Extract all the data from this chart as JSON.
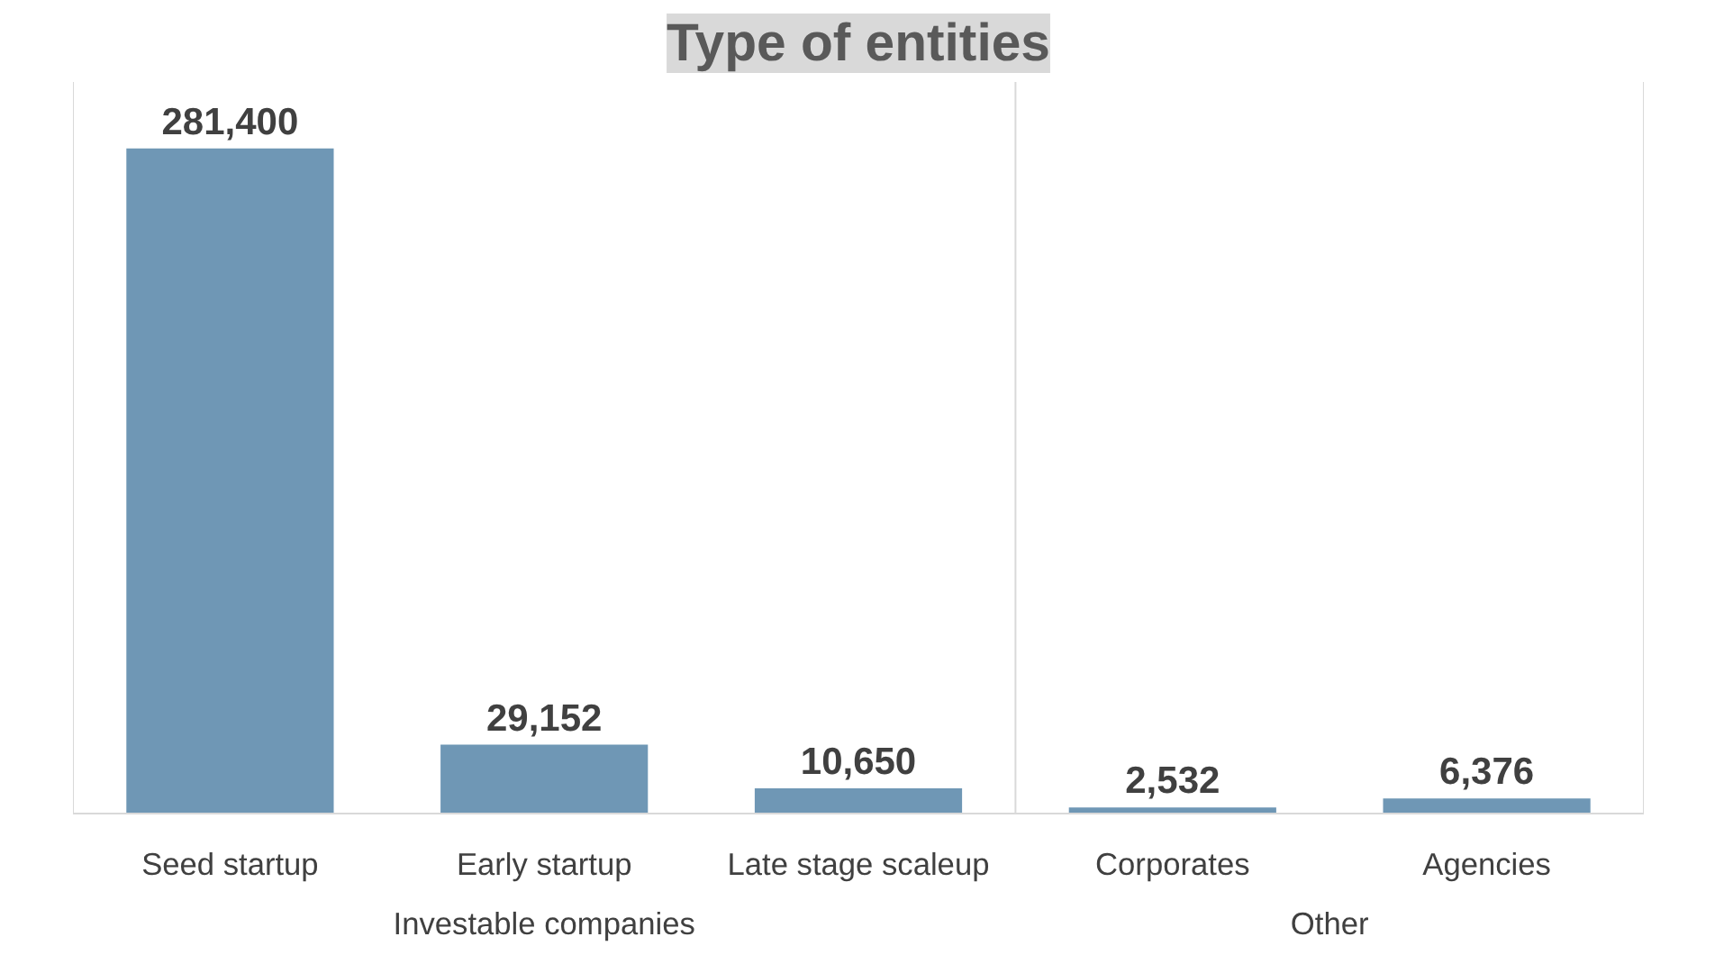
{
  "chart_data": {
    "type": "bar",
    "title": "Type of entities",
    "categories": [
      "Seed startup",
      "Early startup",
      "Late stage scaleup",
      "Corporates",
      "Agencies"
    ],
    "values": [
      281400,
      29152,
      10650,
      2532,
      6376
    ],
    "color": "#6f97b5",
    "value_labels": [
      "281,400",
      "29,152",
      "10,650",
      "2,532",
      "6,376"
    ],
    "grid": false,
    "annotations": [
      "Investable companies",
      "Other"
    ]
  }
}
